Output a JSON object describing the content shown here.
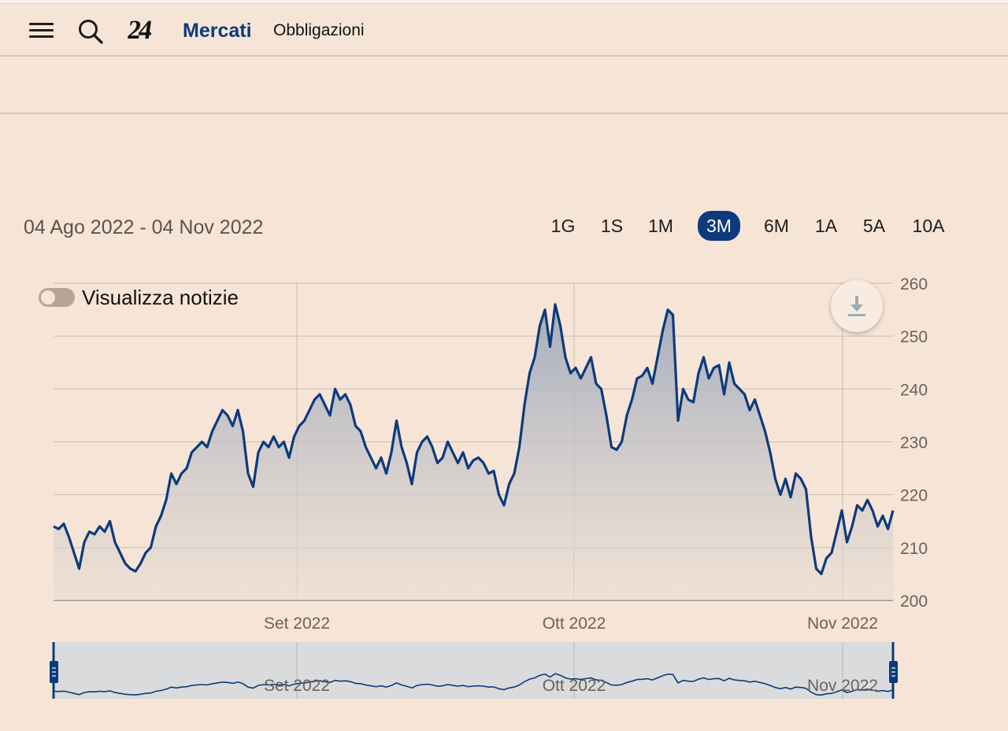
{
  "header": {
    "logo": "24",
    "brand": "Mercati",
    "section": "Obbligazioni"
  },
  "range": {
    "label": "04 Ago 2022 - 04 Nov 2022",
    "periods": [
      "1G",
      "1S",
      "1M",
      "3M",
      "6M",
      "1A",
      "5A",
      "10A"
    ],
    "active": "3M"
  },
  "news_toggle": {
    "label": "Visualizza notizie",
    "enabled": false
  },
  "icons": {
    "menu": "hamburger-menu-icon",
    "search": "search-icon",
    "download": "download-icon"
  },
  "colors": {
    "background": "#f6e5d6",
    "line": "#0d3a7c",
    "active_period": "#0d3a7c",
    "navigator_fill": "#d9dbdd"
  },
  "chart_data": {
    "type": "area",
    "x_unit": "trading day from 04 Ago 2022 to 04 Nov 2022",
    "x_ticks": [
      "Set 2022",
      "Ott 2022",
      "Nov 2022"
    ],
    "y_ticks": [
      200,
      210,
      220,
      230,
      240,
      250,
      260
    ],
    "ylim": [
      200,
      260
    ],
    "grid": true,
    "series": [
      {
        "values": [
          214,
          213.5,
          214.5,
          212,
          209,
          206,
          211,
          213,
          212.5,
          214,
          213,
          215,
          211,
          209,
          207,
          206,
          205.5,
          207,
          209,
          210,
          214,
          216,
          219,
          224,
          222,
          224,
          225,
          228,
          229,
          230,
          229,
          232,
          234,
          236,
          235,
          233,
          236,
          232,
          224,
          221.5,
          228,
          230,
          229,
          231,
          229,
          230,
          227,
          231,
          233,
          234,
          236,
          238,
          239,
          237,
          235,
          240,
          238,
          239,
          237,
          233,
          232,
          229,
          227,
          225,
          227,
          224,
          228,
          234,
          229,
          226,
          222,
          228,
          230,
          231,
          229,
          226,
          227,
          230,
          228,
          226,
          228,
          225,
          226.5,
          227,
          226,
          224,
          224.5,
          220,
          218,
          222,
          224,
          229,
          237,
          243,
          246,
          252,
          255,
          248,
          256,
          252,
          246,
          243,
          244,
          242,
          244,
          246,
          241,
          240,
          235,
          229,
          228.5,
          230,
          235,
          238,
          242,
          242.5,
          244,
          241,
          246,
          251,
          255,
          254,
          234,
          240,
          238,
          237.5,
          243,
          246,
          242,
          244,
          244.5,
          239,
          245,
          241,
          240,
          239,
          236,
          238,
          235,
          232,
          228,
          223,
          220,
          223,
          219.5,
          224,
          223,
          221,
          212,
          206,
          205,
          208,
          209,
          213,
          217,
          211,
          214,
          218,
          217,
          219,
          217,
          214,
          216,
          213.5,
          217
        ]
      }
    ],
    "navigator": {
      "x_ticks": [
        "Set 2022",
        "Ott 2022",
        "Nov 2022"
      ]
    }
  }
}
